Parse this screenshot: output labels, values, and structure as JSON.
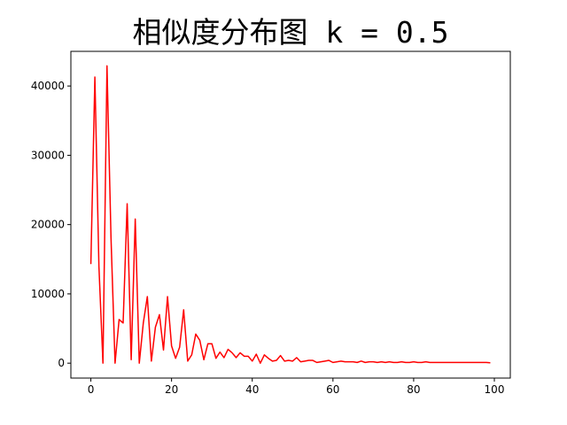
{
  "chart_data": {
    "type": "line",
    "title": "相似度分布图 k = 0.5",
    "xlabel": "",
    "ylabel": "",
    "xlim": [
      -4.95,
      103.95
    ],
    "ylim": [
      -2150,
      45000
    ],
    "xticks": [
      0,
      20,
      40,
      60,
      80,
      100
    ],
    "yticks": [
      0,
      10000,
      20000,
      30000,
      40000
    ],
    "grid": false,
    "legend": "none",
    "line_color": "#ff0000",
    "series": [
      {
        "x": [
          0,
          1,
          2,
          3,
          4,
          5,
          6,
          7,
          8,
          9,
          10,
          11,
          12,
          13,
          14,
          15,
          16,
          17,
          18,
          19,
          20,
          21,
          22,
          23,
          24,
          25,
          26,
          27,
          28,
          29,
          30,
          31,
          32,
          33,
          34,
          35,
          36,
          37,
          38,
          39,
          40,
          41,
          42,
          43,
          44,
          45,
          46,
          47,
          48,
          49,
          50,
          51,
          52,
          53,
          54,
          55,
          56,
          57,
          58,
          59,
          60,
          61,
          62,
          63,
          64,
          65,
          66,
          67,
          68,
          69,
          70,
          71,
          72,
          73,
          74,
          75,
          76,
          77,
          78,
          79,
          80,
          81,
          82,
          83,
          84,
          85,
          86,
          87,
          88,
          89,
          90,
          91,
          92,
          93,
          94,
          95,
          96,
          97,
          98,
          99
        ],
        "y": [
          14300,
          41300,
          14000,
          0,
          42900,
          18000,
          0,
          6300,
          5800,
          23000,
          500,
          20800,
          0,
          5800,
          9600,
          300,
          5200,
          7000,
          1900,
          9600,
          2500,
          700,
          2300,
          7700,
          300,
          1200,
          4200,
          3300,
          500,
          2800,
          2800,
          700,
          1600,
          800,
          2000,
          1500,
          800,
          1500,
          1000,
          1000,
          300,
          1300,
          0,
          1200,
          700,
          300,
          400,
          1100,
          300,
          400,
          300,
          800,
          200,
          300,
          400,
          400,
          100,
          200,
          300,
          400,
          100,
          200,
          300,
          200,
          200,
          200,
          100,
          300,
          100,
          200,
          200,
          100,
          200,
          100,
          200,
          100,
          100,
          200,
          100,
          100,
          200,
          100,
          100,
          200,
          100,
          100,
          100,
          100,
          100,
          100,
          100,
          100,
          100,
          100,
          100,
          100,
          100,
          100,
          100,
          50
        ]
      }
    ]
  }
}
